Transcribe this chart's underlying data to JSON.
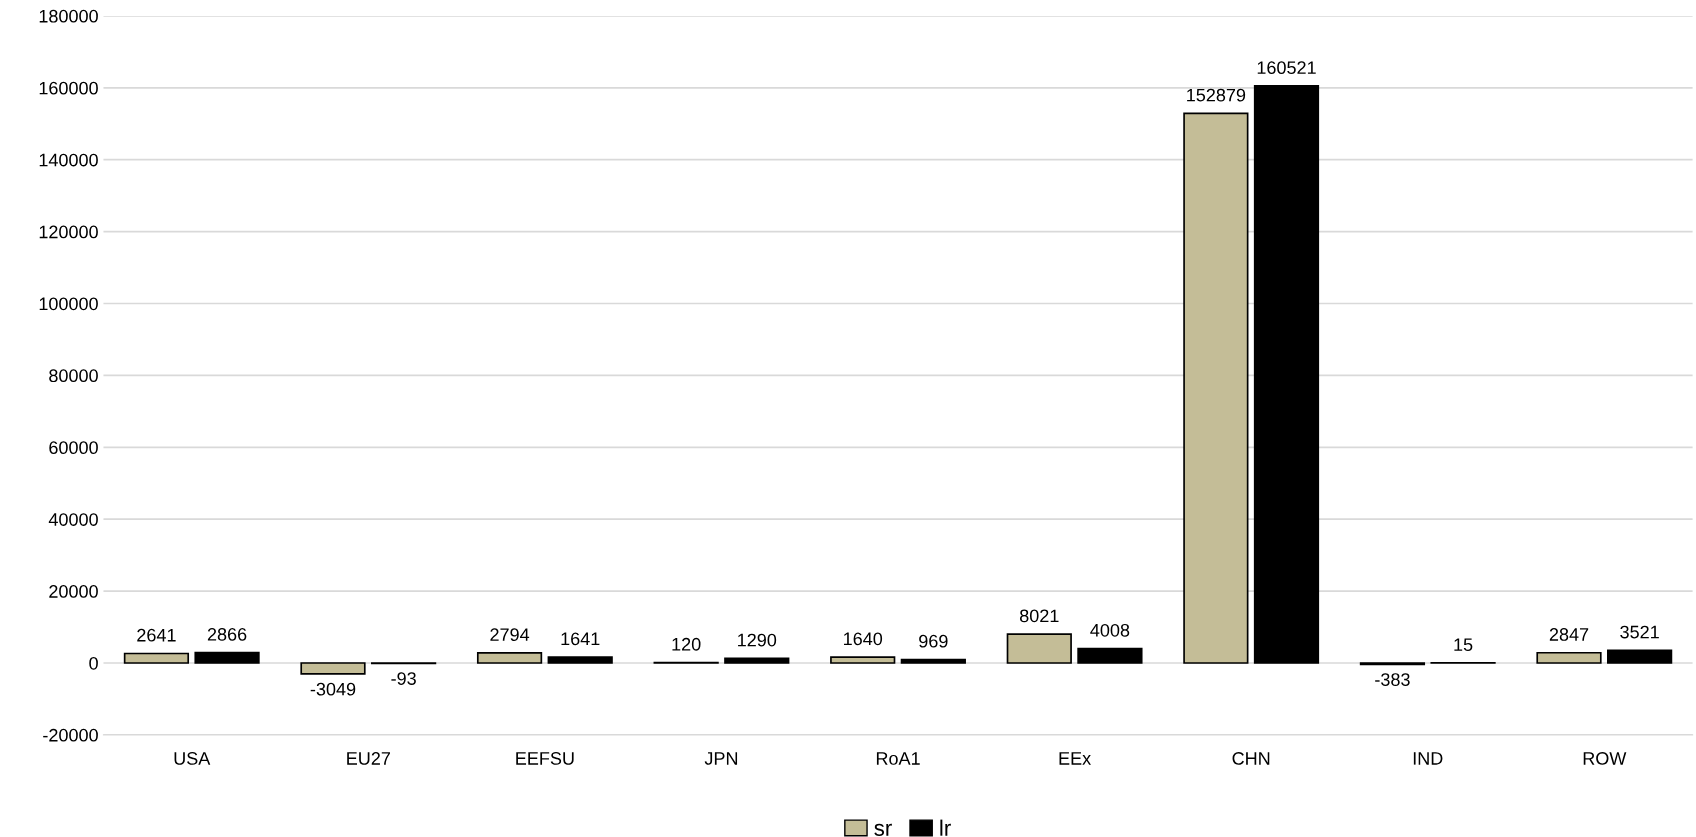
{
  "chart_data": {
    "type": "bar",
    "categories": [
      "USA",
      "EU27",
      "EEFSU",
      "JPN",
      "RoA1",
      "EEx",
      "CHN",
      "IND",
      "ROW"
    ],
    "series": [
      {
        "name": "sr",
        "color": "#c4bd97",
        "values": [
          2641,
          -3049,
          2794,
          120,
          1640,
          8021,
          152879,
          -383,
          2847
        ]
      },
      {
        "name": "lr",
        "color": "#000000",
        "values": [
          2866,
          -93,
          1641,
          1290,
          969,
          4008,
          160521,
          15,
          3521
        ]
      }
    ],
    "ylim": [
      -20000,
      180000
    ],
    "yticks": [
      -20000,
      0,
      20000,
      40000,
      60000,
      80000,
      100000,
      120000,
      140000,
      160000,
      180000
    ],
    "grid": "y",
    "legend": "bottom",
    "data_labels": true
  }
}
